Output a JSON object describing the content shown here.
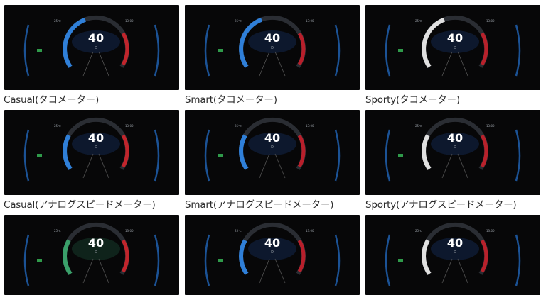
{
  "tiles": [
    {
      "speed": "40",
      "gear": "D",
      "temp": "25℃",
      "clock": "13:00",
      "caption": "Casual(タコメーター)",
      "style": "casual",
      "meter": "tacho",
      "accent": "#2f7fd8",
      "warn": "#d2252b",
      "bg": "#070708"
    },
    {
      "speed": "40",
      "gear": "D",
      "temp": "25℃",
      "clock": "13:00",
      "caption": "Smart(タコメーター)",
      "style": "smart",
      "meter": "tacho",
      "accent": "#2f7fd8",
      "warn": "#c81e2a",
      "bg": "#070708"
    },
    {
      "speed": "40",
      "gear": "D",
      "temp": "25℃",
      "clock": "13:00",
      "caption": "Sporty(タコメーター)",
      "style": "sporty",
      "meter": "tacho",
      "accent": "#e0e0e0",
      "warn": "#c8202a",
      "bg": "#070708"
    },
    {
      "speed": "40",
      "gear": "D",
      "temp": "25℃",
      "clock": "13:00",
      "caption": "Casual(アナログスピードメーター)",
      "style": "casual",
      "meter": "speed",
      "accent": "#2f7fd8",
      "warn": "#d2252b",
      "bg": "#070708"
    },
    {
      "speed": "40",
      "gear": "D",
      "temp": "25℃",
      "clock": "13:00",
      "caption": "Smart(アナログスピードメーター)",
      "style": "smart",
      "meter": "speed",
      "accent": "#2f7fd8",
      "warn": "#c81e2a",
      "bg": "#070708"
    },
    {
      "speed": "40",
      "gear": "D",
      "temp": "25℃",
      "clock": "13:00",
      "caption": "Sporty(アナログスピードメーター)",
      "style": "sporty",
      "meter": "speed",
      "accent": "#e0e0e0",
      "warn": "#c8202a",
      "bg": "#070708"
    },
    {
      "speed": "40",
      "gear": "D",
      "temp": "25℃",
      "clock": "13:00",
      "caption": "",
      "style": "casual",
      "meter": "eco",
      "accent": "#3aa06a",
      "warn": "#d2252b",
      "bg": "#070708"
    },
    {
      "speed": "40",
      "gear": "D",
      "temp": "25℃",
      "clock": "13:00",
      "caption": "",
      "style": "smart",
      "meter": "eco",
      "accent": "#2f7fd8",
      "warn": "#c81e2a",
      "bg": "#070708"
    },
    {
      "speed": "40",
      "gear": "D",
      "temp": "25℃",
      "clock": "13:00",
      "caption": "",
      "style": "sporty",
      "meter": "eco",
      "accent": "#e0e0e0",
      "warn": "#c8202a",
      "bg": "#070708"
    }
  ]
}
